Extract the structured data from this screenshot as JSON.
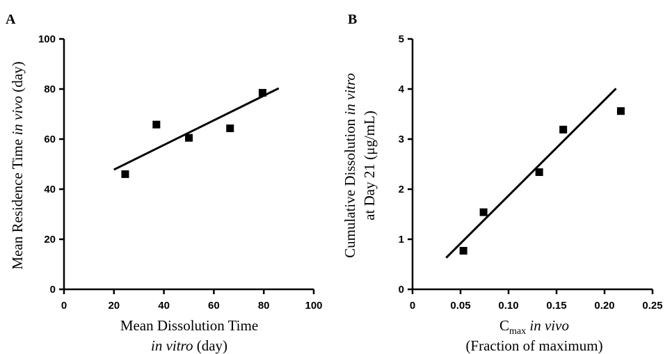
{
  "chart_data": [
    {
      "type": "scatter",
      "panel_label": "A",
      "xlabel_line1": "Mean Dissolution Time",
      "xlabel_line2_italic": "in vitro",
      "xlabel_line2_rest": " (day)",
      "ylabel_pre": "Mean Residence Time ",
      "ylabel_italic": "in vivo",
      "ylabel_post": " (day)",
      "xlim": [
        0,
        100
      ],
      "ylim": [
        0,
        100
      ],
      "xticks": [
        0,
        20,
        40,
        60,
        80,
        100
      ],
      "yticks": [
        0,
        20,
        40,
        60,
        80,
        100
      ],
      "xtick_labels": [
        "0",
        "20",
        "40",
        "60",
        "80",
        "100"
      ],
      "ytick_labels": [
        "0",
        "20",
        "40",
        "60",
        "80",
        "100"
      ],
      "points": [
        {
          "x": 24.5,
          "y": 46.0
        },
        {
          "x": 37.0,
          "y": 65.8
        },
        {
          "x": 50.0,
          "y": 60.5
        },
        {
          "x": 66.5,
          "y": 64.3
        },
        {
          "x": 79.5,
          "y": 78.5
        }
      ],
      "fit_line": {
        "x": [
          20,
          86
        ],
        "y": [
          47.8,
          80.3
        ]
      },
      "grid": false
    },
    {
      "type": "scatter",
      "panel_label": "B",
      "xlabel_main": "C",
      "xlabel_sub": "max",
      "xlabel_italic": " in vivo",
      "xlabel_line2": "(Fraction of maximum)",
      "ylabel_line1_pre": "Cumulative Dissolution ",
      "ylabel_line1_italic": "in vitro",
      "ylabel_line2": "at Day 21 (μg/mL)",
      "xlim": [
        0,
        0.25
      ],
      "ylim": [
        0,
        5
      ],
      "xticks": [
        0,
        0.05,
        0.1,
        0.15,
        0.2,
        0.25
      ],
      "yticks": [
        0,
        1,
        2,
        3,
        4,
        5
      ],
      "xtick_labels": [
        "0",
        "0.05",
        "0.10",
        "0.15",
        "0.20",
        "0.25"
      ],
      "ytick_labels": [
        "0",
        "1",
        "2",
        "3",
        "4",
        "5"
      ],
      "points": [
        {
          "x": 0.053,
          "y": 0.77
        },
        {
          "x": 0.074,
          "y": 1.54
        },
        {
          "x": 0.132,
          "y": 2.34
        },
        {
          "x": 0.157,
          "y": 3.19
        },
        {
          "x": 0.217,
          "y": 3.56
        }
      ],
      "fit_line": {
        "x": [
          0.035,
          0.212
        ],
        "y": [
          0.63,
          4.01
        ]
      },
      "grid": false
    }
  ]
}
